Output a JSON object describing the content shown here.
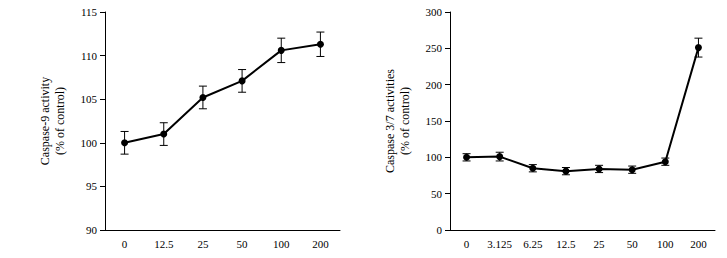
{
  "chart_data": [
    {
      "type": "line",
      "y_label": "Caspase-9 activity\n(% of control)",
      "categories": [
        "0",
        "12.5",
        "25",
        "50",
        "100",
        "200"
      ],
      "series": [
        {
          "color": "#000000",
          "marker": "circle",
          "values": [
            100,
            101,
            105.2,
            107.1,
            110.6,
            111.3
          ],
          "errors": [
            1.3,
            1.3,
            1.3,
            1.3,
            1.4,
            1.4
          ]
        }
      ],
      "ylim": [
        90,
        115
      ],
      "yticks": [
        90,
        95,
        100,
        105,
        110,
        115
      ],
      "grid": false
    },
    {
      "type": "line",
      "y_label": "Caspase 3/7 activities\n(% of control)",
      "categories": [
        "0",
        "3.125",
        "6.25",
        "12.5",
        "25",
        "50",
        "100",
        "200"
      ],
      "series": [
        {
          "color": "#000000",
          "marker": "circle",
          "values": [
            100,
            101,
            85,
            81,
            84,
            83,
            94,
            251
          ],
          "errors": [
            5,
            6,
            5,
            5,
            5,
            5,
            5,
            13
          ]
        }
      ],
      "ylim": [
        0,
        300
      ],
      "yticks": [
        0,
        50,
        100,
        150,
        200,
        250,
        300
      ],
      "grid": false
    }
  ]
}
